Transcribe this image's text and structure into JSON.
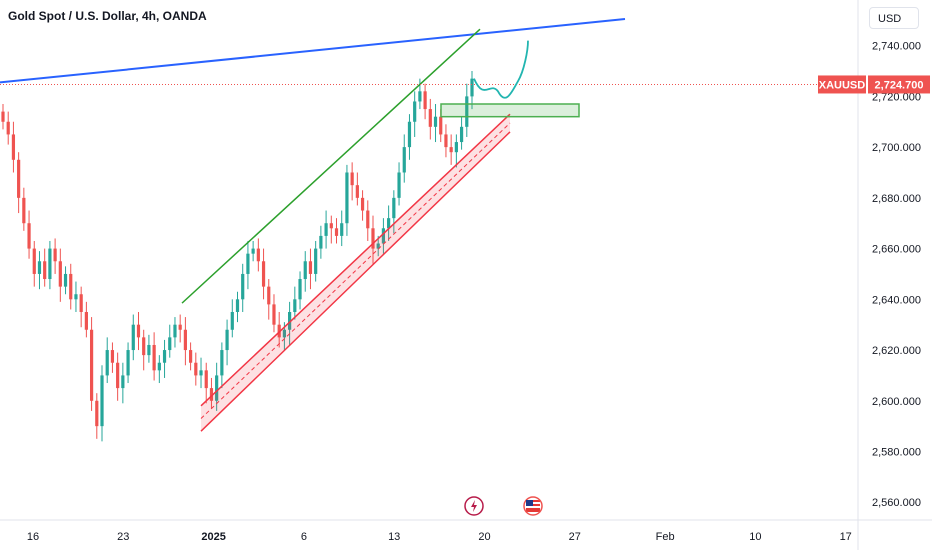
{
  "header": {
    "title": "Gold Spot / U.S. Dollar, 4h, OANDA",
    "currency_button": "USD"
  },
  "colors": {
    "up": "#26a69a",
    "down": "#ef5350",
    "trend_blue": "#2962ff",
    "trend_green": "#2ca02c",
    "projection_teal": "#22b5b0",
    "channel_red": "#f23645",
    "zone_green": "#4caf50"
  },
  "chart_data": {
    "type": "candlestick",
    "symbol_tag": "XAUUSD",
    "last_price": "2,724.700",
    "y_ticks": [
      "2,740.000",
      "2,720.000",
      "2,700.000",
      "2,680.000",
      "2,660.000",
      "2,640.000",
      "2,620.000",
      "2,600.000",
      "2,580.000",
      "2,560.000"
    ],
    "y_tick_values": [
      2740,
      2720,
      2700,
      2680,
      2660,
      2640,
      2620,
      2600,
      2580,
      2560
    ],
    "ylim": [
      2553,
      2758
    ],
    "x_ticks": [
      {
        "label": "16",
        "day": 16
      },
      {
        "label": "23",
        "day": 23
      },
      {
        "label": "2025",
        "day": 30,
        "bold": true
      },
      {
        "label": "6",
        "day": 37
      },
      {
        "label": "13",
        "day": 44
      },
      {
        "label": "20",
        "day": 51
      },
      {
        "label": "27",
        "day": 58
      },
      {
        "label": "Feb",
        "day": 65
      },
      {
        "label": "10",
        "day": 72
      },
      {
        "label": "17",
        "day": 79
      }
    ],
    "series": [
      {
        "name": "close",
        "values": [
          2710,
          2705,
          2695,
          2680,
          2670,
          2660,
          2650,
          2655,
          2648,
          2660,
          2655,
          2645,
          2650,
          2640,
          2642,
          2635,
          2628,
          2600,
          2590,
          2610,
          2620,
          2615,
          2605,
          2610,
          2620,
          2630,
          2625,
          2618,
          2622,
          2612,
          2615,
          2620,
          2625,
          2630,
          2628,
          2620,
          2615,
          2610,
          2612,
          2605,
          2600,
          2610,
          2620,
          2628,
          2635,
          2640,
          2650,
          2658,
          2660,
          2655,
          2645,
          2638,
          2630,
          2625,
          2628,
          2635,
          2640,
          2648,
          2655,
          2650,
          2660,
          2665,
          2670,
          2668,
          2665,
          2670,
          2690,
          2685,
          2680,
          2675,
          2668,
          2660,
          2662,
          2668,
          2672,
          2680,
          2690,
          2700,
          2710,
          2718,
          2722,
          2715,
          2708,
          2712,
          2705,
          2700,
          2698,
          2702,
          2708,
          2720,
          2727
        ]
      }
    ],
    "channel": {
      "lower": [
        [
          2598,
          2600
        ],
        [
          2710,
          2712
        ]
      ],
      "upper": [
        [
          2590,
          2605
        ],
        [
          2705,
          2718
        ]
      ]
    },
    "zone": {
      "low": 2712,
      "high": 2717
    },
    "projection": "up"
  },
  "events": {
    "flash_icon": "lightning-icon",
    "flag_icon": "us-flag-icon"
  }
}
